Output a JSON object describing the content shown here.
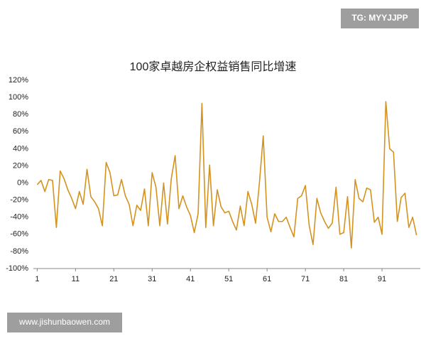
{
  "chart_data": {
    "type": "line",
    "title": "100家卓越房企权益销售同比增速",
    "watermarks": [
      "TG: MYYJJPP",
      "www.jishunbaowen.com"
    ],
    "color": "#d4921f",
    "x": [
      1,
      2,
      3,
      4,
      5,
      6,
      7,
      8,
      9,
      10,
      11,
      12,
      13,
      14,
      15,
      16,
      17,
      18,
      19,
      20,
      21,
      22,
      23,
      24,
      25,
      26,
      27,
      28,
      29,
      30,
      31,
      32,
      33,
      34,
      35,
      36,
      37,
      38,
      39,
      40,
      41,
      42,
      43,
      44,
      45,
      46,
      47,
      48,
      49,
      50,
      51,
      52,
      53,
      54,
      55,
      56,
      57,
      58,
      59,
      60,
      61,
      62,
      63,
      64,
      65,
      66,
      67,
      68,
      69,
      70,
      71,
      72,
      73,
      74,
      75,
      76,
      77,
      78,
      79,
      80,
      81,
      82,
      83,
      84,
      85,
      86,
      87,
      88,
      89,
      90,
      91,
      92,
      93,
      94,
      95,
      96,
      97,
      98,
      99,
      100
    ],
    "values": [
      -2,
      3,
      -10,
      4,
      3,
      -52,
      14,
      5,
      -8,
      -18,
      -30,
      -10,
      -25,
      16,
      -16,
      -22,
      -30,
      -50,
      24,
      12,
      -15,
      -14,
      4,
      -15,
      -25,
      -50,
      -26,
      -32,
      -7,
      -50,
      12,
      -5,
      -50,
      0,
      -48,
      5,
      32,
      -30,
      -15,
      -28,
      -38,
      -58,
      -36,
      93,
      -52,
      21,
      -50,
      -8,
      -28,
      -35,
      -33,
      -45,
      -55,
      -27,
      -50,
      -10,
      -25,
      -47,
      0,
      55,
      -40,
      -57,
      -36,
      -45,
      -45,
      -40,
      -52,
      -63,
      -18,
      -15,
      -3,
      -50,
      -72,
      -18,
      -35,
      -45,
      -53,
      -47,
      -5,
      -60,
      -58,
      -16,
      -76,
      4,
      -18,
      -22,
      -6,
      -8,
      -46,
      -40,
      -60,
      95,
      40,
      36,
      -45,
      -17,
      -12,
      -52,
      -40,
      -61
    ],
    "xlim": [
      0,
      101
    ],
    "xticks": [
      1,
      11,
      21,
      31,
      41,
      51,
      61,
      71,
      81,
      91
    ],
    "ylim": [
      -100,
      120
    ],
    "yticks": [
      {
        "value": -100,
        "label": "-100%"
      },
      {
        "value": -80,
        "label": "-80%"
      },
      {
        "value": -60,
        "label": "-60%"
      },
      {
        "value": -40,
        "label": "-40%"
      },
      {
        "value": -20,
        "label": "-20%"
      },
      {
        "value": 0,
        "label": "0%"
      },
      {
        "value": 20,
        "label": "20%"
      },
      {
        "value": 40,
        "label": "40%"
      },
      {
        "value": 60,
        "label": "60%"
      },
      {
        "value": 80,
        "label": "80%"
      },
      {
        "value": 100,
        "label": "100%"
      },
      {
        "value": 120,
        "label": "120%"
      }
    ],
    "grid": false
  }
}
